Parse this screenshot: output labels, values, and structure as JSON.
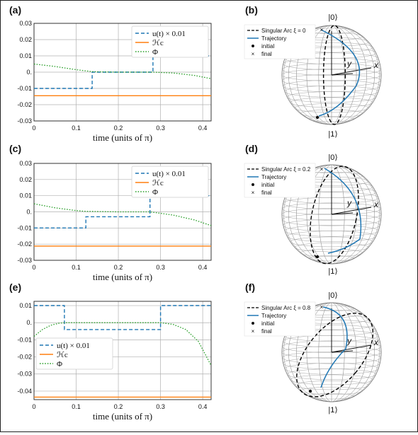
{
  "colors": {
    "control": "#1f77b4",
    "hamiltonian": "#ff7f0e",
    "phi": "#2ca02c",
    "singular_arc": "#000000",
    "trajectory": "#1f77b4",
    "grid": "#b0b0b0",
    "sphere_mesh": "#9a9a9a"
  },
  "chart_data": [
    {
      "panel": "(a)",
      "type": "line",
      "xlabel": "time (units of π)",
      "ylabel": "",
      "xlim": [
        0,
        0.42
      ],
      "ylim": [
        -0.03,
        0.03
      ],
      "xticks": [
        "0",
        "0.1",
        "0.2",
        "0.3",
        "0.4"
      ],
      "yticks": [
        "0.03",
        "0.02",
        "0.01",
        "0.",
        "-0.01",
        "-0.02",
        "-0.03"
      ],
      "grid": true,
      "legend_position": "top-right",
      "series": [
        {
          "name": "u(t) × 0.01",
          "style": "dashed",
          "color": "#1f77b4",
          "x": [
            0,
            0.138,
            0.138,
            0.282,
            0.282,
            0.42
          ],
          "y": [
            -0.01,
            -0.01,
            0.0,
            0.0,
            0.01,
            0.01
          ]
        },
        {
          "name": "ℋc",
          "style": "solid",
          "color": "#ff7f0e",
          "x": [
            0,
            0.42
          ],
          "y": [
            -0.0145,
            -0.0145
          ]
        },
        {
          "name": "Φ",
          "style": "dotted",
          "color": "#2ca02c",
          "x": [
            0,
            0.05,
            0.1,
            0.138,
            0.2,
            0.282,
            0.33,
            0.38,
            0.42
          ],
          "y": [
            0.005,
            0.0035,
            0.0015,
            0.0003,
            0.0,
            0.0,
            -0.0005,
            -0.002,
            -0.004
          ]
        }
      ]
    },
    {
      "panel": "(c)",
      "type": "line",
      "xlabel": "time (units of π)",
      "ylabel": "",
      "xlim": [
        0,
        0.42
      ],
      "ylim": [
        -0.03,
        0.03
      ],
      "xticks": [
        "0",
        "0.1",
        "0.2",
        "0.3",
        "0.4"
      ],
      "yticks": [
        "0.03",
        "0.02",
        "0.01",
        "0.",
        "-0.01",
        "-0.02",
        "-0.03"
      ],
      "grid": true,
      "legend_position": "top-right",
      "series": [
        {
          "name": "u(t) × 0.01",
          "style": "dashed",
          "color": "#1f77b4",
          "x": [
            0,
            0.123,
            0.123,
            0.275,
            0.275,
            0.42
          ],
          "y": [
            -0.01,
            -0.01,
            -0.003,
            -0.003,
            0.01,
            0.01
          ]
        },
        {
          "name": "ℋc",
          "style": "solid",
          "color": "#ff7f0e",
          "x": [
            0,
            0.42
          ],
          "y": [
            -0.0212,
            -0.0212
          ]
        },
        {
          "name": "Φ",
          "style": "dotted",
          "color": "#2ca02c",
          "x": [
            0,
            0.05,
            0.1,
            0.123,
            0.2,
            0.275,
            0.33,
            0.38,
            0.42
          ],
          "y": [
            0.005,
            0.0025,
            0.0008,
            0.0003,
            0.0,
            0.0,
            -0.002,
            -0.005,
            -0.0085
          ]
        }
      ]
    },
    {
      "panel": "(e)",
      "type": "line",
      "xlabel": "time (units of π)",
      "ylabel": "",
      "xlim": [
        0,
        0.42
      ],
      "ylim": [
        -0.045,
        0.0125
      ],
      "xticks": [
        "0",
        "0.1",
        "0.2",
        "0.3",
        "0.4"
      ],
      "yticks": [
        "0.01",
        "0.",
        "-0.01",
        "-0.02",
        "-0.03",
        "-0.04"
      ],
      "grid": true,
      "legend_position": "center-left",
      "series": [
        {
          "name": "u(t) × 0.01",
          "style": "dashed",
          "color": "#1f77b4",
          "x": [
            0,
            0.072,
            0.072,
            0.3,
            0.3,
            0.42
          ],
          "y": [
            0.01,
            0.01,
            -0.004,
            -0.004,
            0.01,
            0.01
          ]
        },
        {
          "name": "ℋc",
          "style": "solid",
          "color": "#ff7f0e",
          "x": [
            0,
            0.42
          ],
          "y": [
            -0.0435,
            -0.0435
          ]
        },
        {
          "name": "Φ",
          "style": "dotted",
          "color": "#2ca02c",
          "x": [
            0,
            0.02,
            0.04,
            0.06,
            0.072,
            0.1,
            0.2,
            0.3,
            0.33,
            0.36,
            0.39,
            0.42
          ],
          "y": [
            -0.008,
            -0.004,
            -0.0015,
            -0.0003,
            0.0,
            0.0,
            0.0,
            0.0,
            -0.001,
            -0.004,
            -0.011,
            -0.025
          ]
        }
      ]
    }
  ],
  "panels": {
    "a": {
      "label": "(a)"
    },
    "b": {
      "label": "(b)",
      "legend": {
        "singular_arc": "Singular Arc ξ = 0",
        "trajectory": "Trajectory",
        "initial": "initial",
        "final": "final"
      }
    },
    "c": {
      "label": "(c)"
    },
    "d": {
      "label": "(d)",
      "legend": {
        "singular_arc": "Singular Arc ξ = 0.2",
        "trajectory": "Trajectory",
        "initial": "initial",
        "final": "final"
      }
    },
    "e": {
      "label": "(e)"
    },
    "f": {
      "label": "(f)",
      "legend": {
        "singular_arc": "Singular Arc ξ = 0.8",
        "trajectory": "Trajectory",
        "initial": "initial",
        "final": "final"
      }
    }
  },
  "sphere": {
    "ket0": "|0⟩",
    "ket1": "|1⟩",
    "x_axis": "x",
    "y_axis": "y"
  }
}
